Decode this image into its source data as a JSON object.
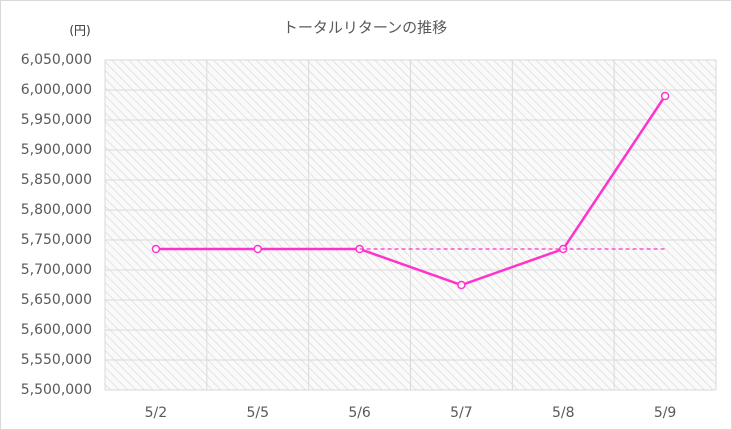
{
  "chart_data": {
    "type": "line",
    "title": "トータルリターンの推移",
    "y_unit": "(円)",
    "categories": [
      "5/2",
      "5/5",
      "5/6",
      "5/7",
      "5/8",
      "5/9"
    ],
    "series": [
      {
        "color": "#ff33cc",
        "values": [
          5735000,
          5735000,
          5735000,
          5675000,
          5735000,
          5990000
        ],
        "markers": true,
        "dashed": false
      },
      {
        "color": "#ff33cc",
        "values": [
          null,
          null,
          5735000,
          5735000,
          5735000,
          5735000
        ],
        "markers": false,
        "dashed": true
      }
    ],
    "ylim": [
      5500000,
      6050000
    ],
    "yticks": [
      {
        "value": 5500000,
        "label": "5,500,000"
      },
      {
        "value": 5550000,
        "label": "5,550,000"
      },
      {
        "value": 5600000,
        "label": "5,600,000"
      },
      {
        "value": 5650000,
        "label": "5,650,000"
      },
      {
        "value": 5700000,
        "label": "5,700,000"
      },
      {
        "value": 5750000,
        "label": "5,750,000"
      },
      {
        "value": 5800000,
        "label": "5,800,000"
      },
      {
        "value": 5850000,
        "label": "5,850,000"
      },
      {
        "value": 5900000,
        "label": "5,900,000"
      },
      {
        "value": 5950000,
        "label": "5,950,000"
      },
      {
        "value": 6000000,
        "label": "6,000,000"
      },
      {
        "value": 6050000,
        "label": "6,050,000"
      }
    ],
    "grid": true
  }
}
